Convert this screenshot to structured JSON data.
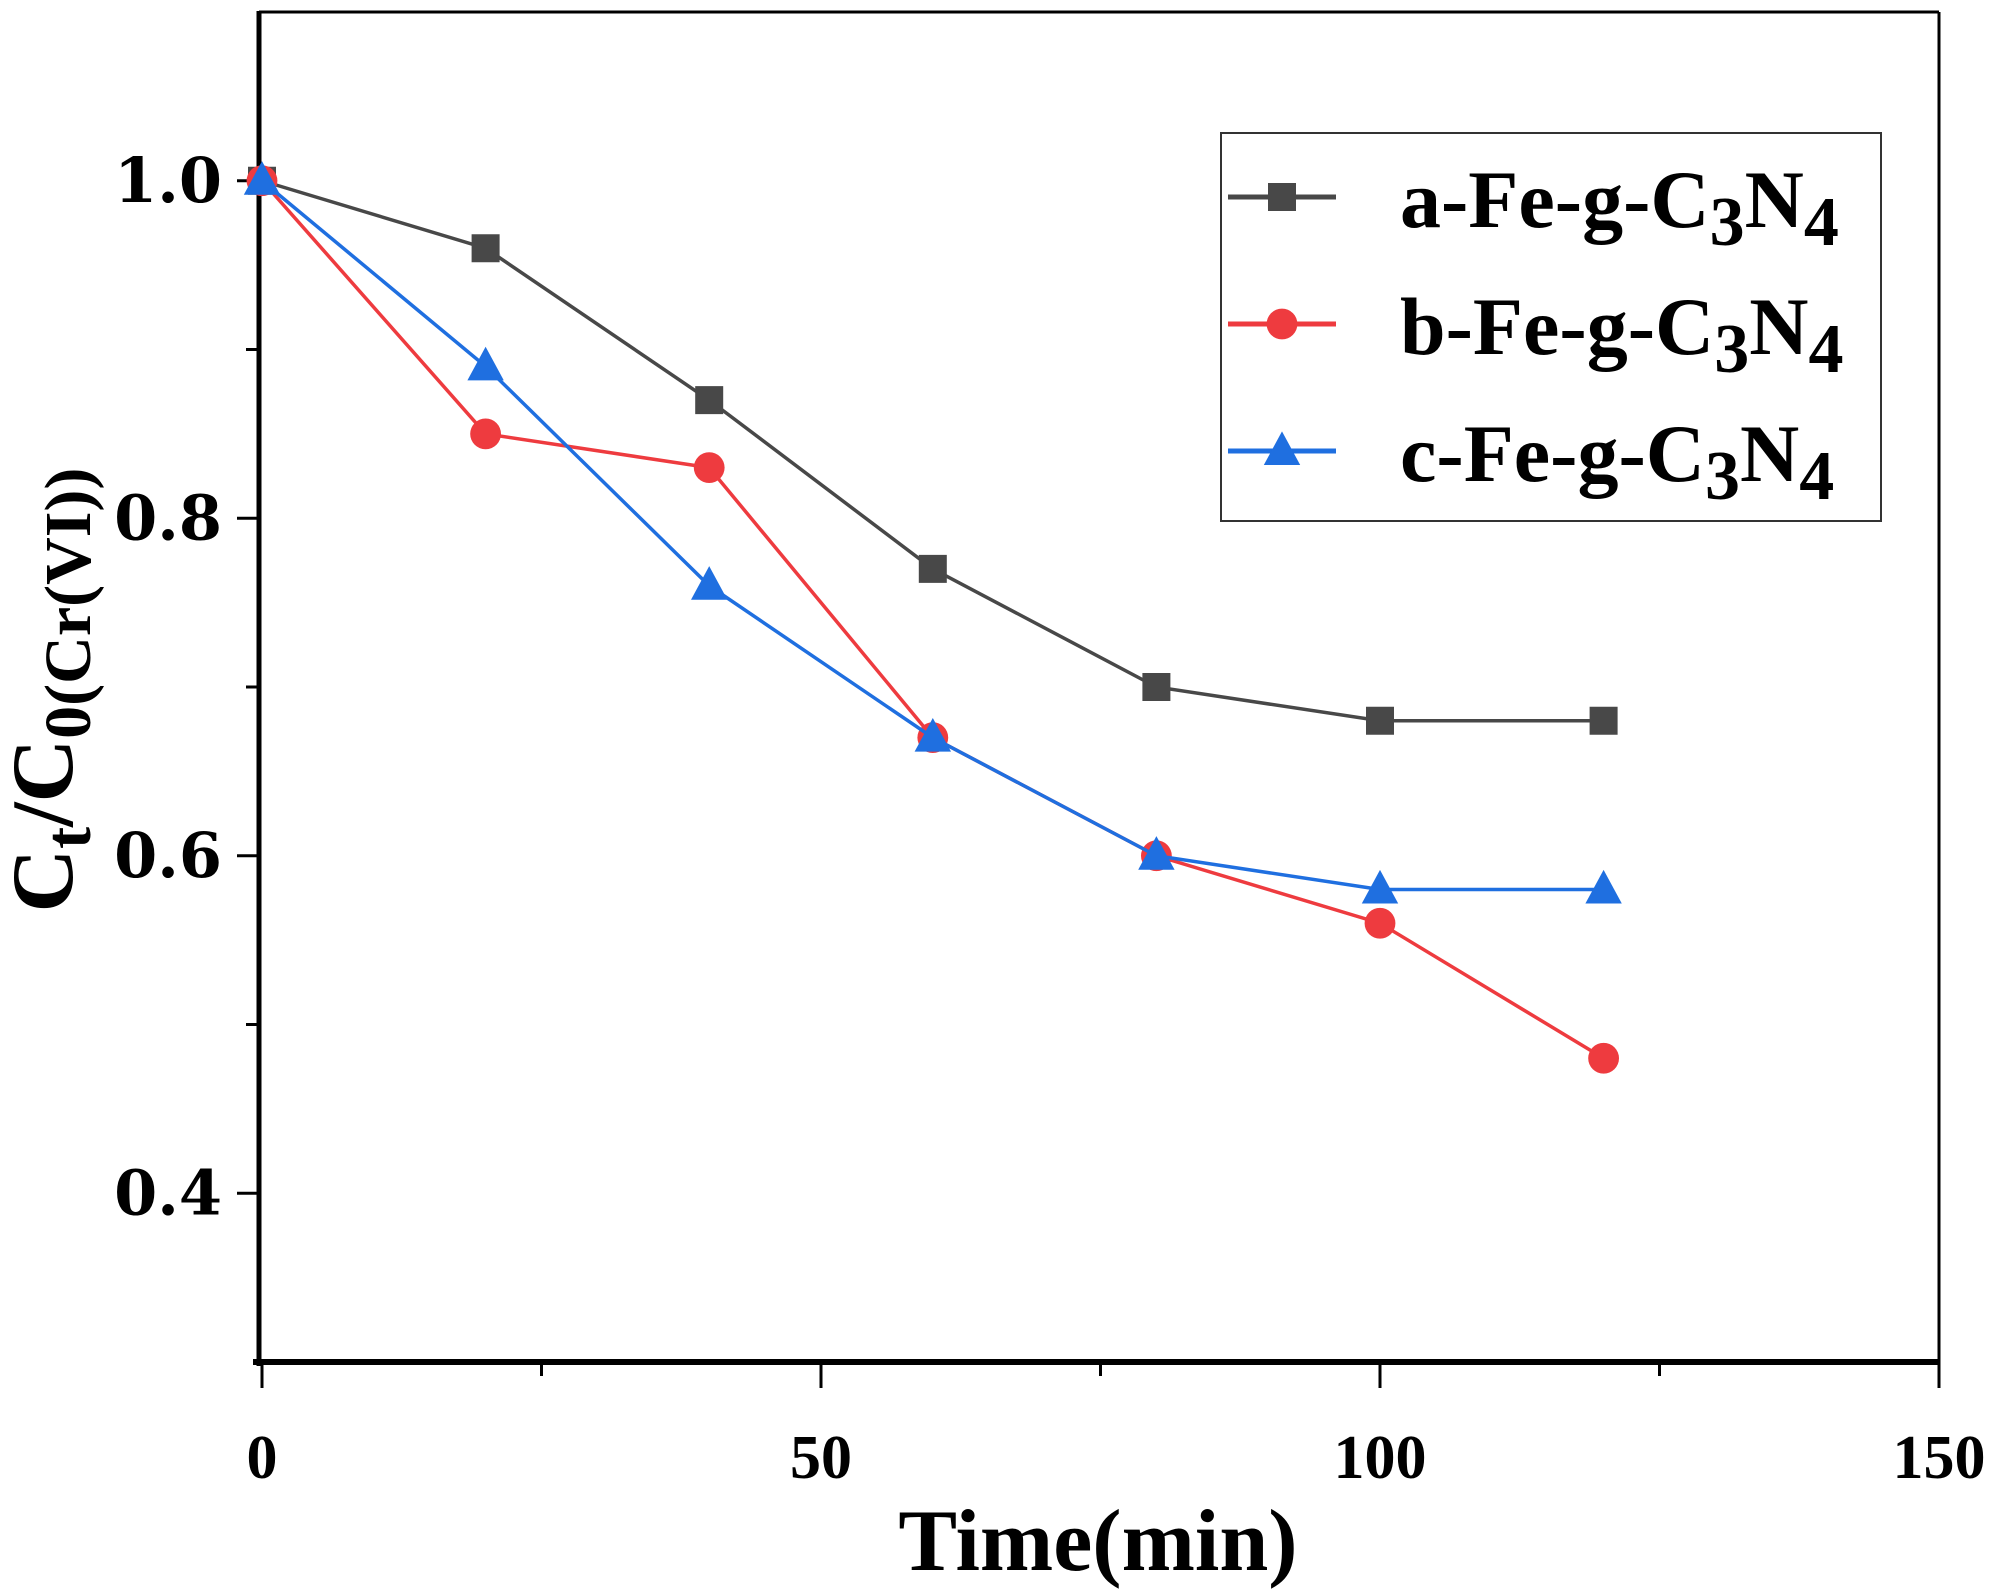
{
  "chart_data": {
    "type": "line",
    "title": "",
    "xlabel": "Time(min)",
    "ylabel_parts": [
      {
        "text": "C",
        "sub": false
      },
      {
        "text": "t",
        "sub": true
      },
      {
        "text": "/C",
        "sub": false
      },
      {
        "text": "0(Cr(VI))",
        "sub": true
      }
    ],
    "xlim": [
      0,
      150
    ],
    "ylim": [
      0.3,
      1.1
    ],
    "xticks": [
      0,
      50,
      100,
      150
    ],
    "xminor": [
      25,
      75,
      125
    ],
    "yticks": [
      0.4,
      0.6,
      0.8,
      1.0
    ],
    "yminor": [
      0.5,
      0.7,
      0.9
    ],
    "ytick_labels": [
      "0.4",
      "0.6",
      "0.8",
      "1.0"
    ],
    "xtick_labels": [
      "0",
      "50",
      "100",
      "150"
    ],
    "grid": false,
    "legend_position": "top-right",
    "x": [
      0,
      20,
      40,
      60,
      80,
      100,
      120
    ],
    "series": [
      {
        "name": "a-Fe-g-C3N4",
        "color": "#484848",
        "marker": "square",
        "values": [
          1.0,
          0.96,
          0.87,
          0.77,
          0.7,
          0.68,
          0.68
        ]
      },
      {
        "name": "b-Fe-g-C3N4",
        "color": "#ee3b3f",
        "marker": "circle",
        "values": [
          1.0,
          0.85,
          0.83,
          0.67,
          0.6,
          0.56,
          0.48
        ]
      },
      {
        "name": "c-Fe-g-C3N4",
        "color": "#1f6fe0",
        "marker": "triangle",
        "values": [
          1.0,
          0.89,
          0.76,
          0.67,
          0.6,
          0.58,
          0.58
        ]
      }
    ]
  }
}
